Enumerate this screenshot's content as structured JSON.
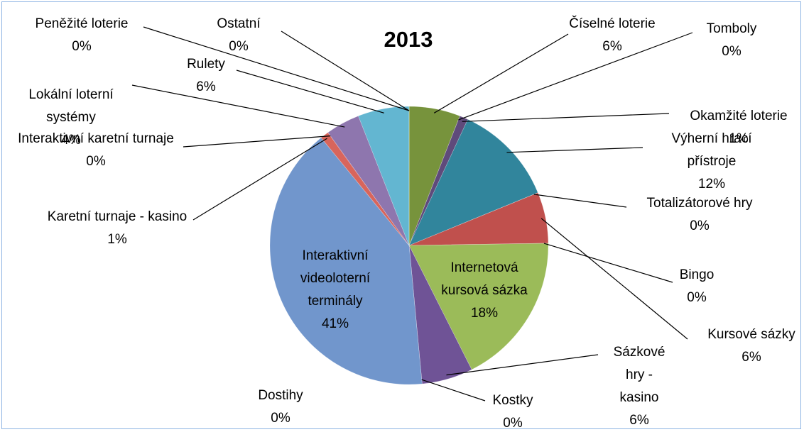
{
  "chart_data": {
    "type": "pie",
    "title": "2013",
    "categories": [
      "Číselné loterie",
      "Tomboly",
      "Okamžité loterie",
      "Výherní hrací přístroje",
      "Totalizátorové hry",
      "Kursové sázky",
      "Bingo",
      "Internetová kursová sázka",
      "Sázkové hry - kasino",
      "Kostky",
      "Dostihy",
      "Interaktivní videoloterní terminály",
      "Karetní turnaje - kasino",
      "Interaktivní karetní turnaje",
      "Lokální loterní systémy",
      "Rulety",
      "Peněžité loterie",
      "Ostatní"
    ],
    "values": [
      6,
      0,
      1,
      12,
      0,
      6,
      0,
      18,
      6,
      0,
      0,
      41,
      1,
      0,
      4,
      6,
      0,
      0
    ],
    "value_labels": [
      "6%",
      "0%",
      "1%",
      "12%",
      "0%",
      "6%",
      "0%",
      "18%",
      "6%",
      "0%",
      "0%",
      "41%",
      "1%",
      "0%",
      "4%",
      "6%",
      "0%",
      "0%"
    ],
    "colors": [
      "#77933c",
      "#c0504d",
      "#5f4a7b",
      "#31859c",
      "#c0504d",
      "#c0504d",
      "#9bbb59",
      "#9bbb59",
      "#6f5396",
      "#8064a2",
      "#4f81bd",
      "#7196cc",
      "#d8655c",
      "#9bbb59",
      "#8e76ae",
      "#63b6d1",
      "#4bacc6",
      "#4bacc6"
    ]
  }
}
